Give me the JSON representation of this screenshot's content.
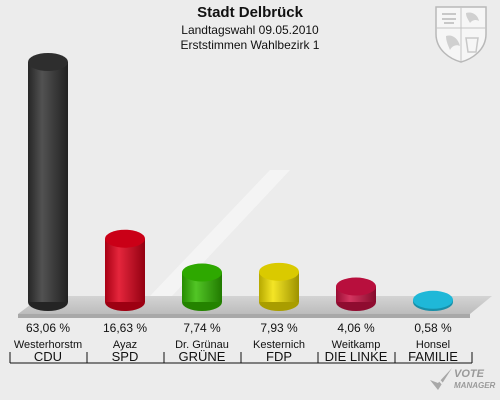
{
  "header": {
    "title": "Stadt Delbrück",
    "subtitle1": "Landtagswahl 09.05.2010",
    "subtitle2": "Erststimmen Wahlbezirk 1"
  },
  "logo": {
    "line1": "VOTE",
    "line2": "MANAGER"
  },
  "chart_data": {
    "type": "bar",
    "title": "Stadt Delbrück",
    "ylim": [
      0,
      63.06
    ],
    "categories": [
      "CDU",
      "SPD",
      "GRÜNE",
      "FDP",
      "DIE LINKE",
      "FAMILIE"
    ],
    "candidates": [
      "Westerhorstm",
      "Ayaz",
      "Dr. Grünau",
      "Kesternich",
      "Weitkamp",
      "Honsel"
    ],
    "values": [
      63.06,
      16.63,
      7.74,
      7.93,
      4.06,
      0.58
    ],
    "value_labels": [
      "63,06 %",
      "16,63 %",
      "7,74 %",
      "7,93 %",
      "4,06 %",
      "0,58 %"
    ],
    "colors": [
      "#333333",
      "#e0001a",
      "#33bb00",
      "#f2e000",
      "#cc1144",
      "#22ccf0"
    ]
  }
}
